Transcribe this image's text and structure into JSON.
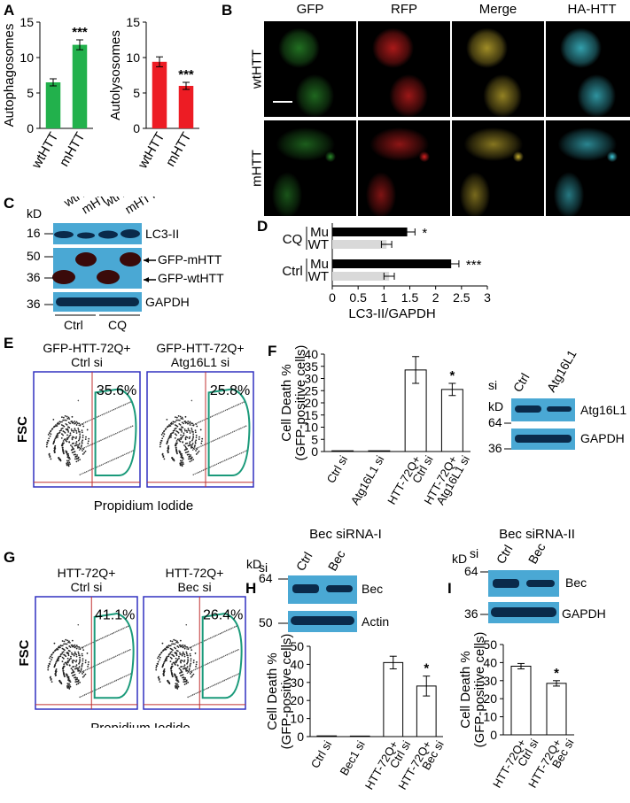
{
  "panel_labels": {
    "A": "A",
    "B": "B",
    "C": "C",
    "D": "D",
    "E": "E",
    "F": "F",
    "G": "G",
    "H": "H",
    "I": "I"
  },
  "panelA": {
    "chart_data": [
      {
        "type": "bar",
        "ylabel": "Autophagosomes",
        "categories": [
          "wtHTT",
          "mHTT"
        ],
        "values": [
          6.5,
          11.8
        ],
        "errors": [
          0.5,
          0.7
        ],
        "ylim": [
          0,
          15
        ],
        "yticks": [
          0,
          5,
          10,
          15
        ],
        "color": "#22b14c",
        "significance": [
          "",
          "***"
        ]
      },
      {
        "type": "bar",
        "ylabel": "Autolysosomes",
        "categories": [
          "wtHTT",
          "mHTT"
        ],
        "values": [
          9.4,
          6.0
        ],
        "errors": [
          0.7,
          0.5
        ],
        "ylim": [
          0,
          15
        ],
        "yticks": [
          0,
          5,
          10,
          15
        ],
        "color": "#ed1c24",
        "significance": [
          "",
          "***"
        ]
      }
    ]
  },
  "panelB": {
    "columns": [
      "GFP",
      "RFP",
      "Merge",
      "HA-HTT"
    ],
    "rows": [
      "wtHTT",
      "mHTT"
    ],
    "colors": [
      "#2a8c2a",
      "#d42020",
      "#c8b030",
      "#40c8d8"
    ]
  },
  "panelC": {
    "kD": "kD",
    "lane_labels": [
      "wtHTT",
      "mHTT",
      "wtHTT",
      "mHTT"
    ],
    "markers": [
      "16",
      "50",
      "36",
      "36"
    ],
    "bands": [
      "LC3-II",
      "GFP-mHTT",
      "GFP-wtHTT",
      "GAPDH"
    ],
    "groups": [
      "Ctrl",
      "CQ"
    ]
  },
  "panelD": {
    "chart_data": {
      "type": "bar",
      "orientation": "horizontal",
      "groups": [
        "CQ",
        "Ctrl"
      ],
      "categories": [
        "Mu",
        "WT",
        "Mu",
        "WT"
      ],
      "values": [
        1.45,
        1.05,
        2.3,
        1.1
      ],
      "errors": [
        0.15,
        0.1,
        0.15,
        0.1
      ],
      "colors": [
        "#000000",
        "#d9d9d9",
        "#000000",
        "#d9d9d9"
      ],
      "significance": [
        "*",
        "",
        "***",
        ""
      ],
      "xlabel": "LC3-II/GAPDH",
      "xlim": [
        0,
        3
      ],
      "xticks": [
        "0",
        "0.5",
        "1",
        "1.5",
        "2",
        "2.5",
        "3"
      ]
    }
  },
  "panelE": {
    "plots": [
      {
        "title1": "GFP-HTT-72Q+",
        "title2": "Ctrl si",
        "percent": "35.6%"
      },
      {
        "title1": "GFP-HTT-72Q+",
        "title2": "Atg16L1 si",
        "percent": "25.8%"
      }
    ],
    "ylabel": "FSC",
    "xlabel": "Propidium Iodide"
  },
  "panelF": {
    "chart_data": {
      "type": "bar",
      "ylabel1": "Cell Death %",
      "ylabel2": "(GFP-positive cells)",
      "categories": [
        "Ctrl si",
        "Atg16L1 si",
        "HTT-72Q+ Ctrl si",
        "HTT-72Q+ Atg16L1 si"
      ],
      "cat_line1": [
        "Ctrl si",
        "Atg16L1 si",
        "HTT-72Q+",
        "HTT-72Q+"
      ],
      "cat_line2": [
        "",
        "",
        "Ctrl si",
        "Atg16L1 si"
      ],
      "values": [
        0.3,
        0.3,
        33.5,
        25.5
      ],
      "errors": [
        0,
        0,
        5.5,
        2.5
      ],
      "significance": [
        "",
        "",
        "",
        "*"
      ],
      "ylim": [
        0,
        40
      ],
      "yticks": [
        0,
        5,
        10,
        15,
        20,
        25,
        30,
        35,
        40
      ]
    },
    "blot": {
      "si": "si",
      "lanes": [
        "Ctrl",
        "Atg16L1"
      ],
      "kD": "kD",
      "markers": [
        "64",
        "36"
      ],
      "bands": [
        "Atg16L1",
        "GAPDH"
      ]
    }
  },
  "panelG": {
    "plots": [
      {
        "title1": "HTT-72Q+",
        "title2": "Ctrl si",
        "percent": "41.1%"
      },
      {
        "title1": "HTT-72Q+",
        "title2": "Bec si",
        "percent": "26.4%"
      }
    ],
    "ylabel": "FSC",
    "xlabel": "Propidium Iodide"
  },
  "panelH": {
    "title": "Bec siRNA-I",
    "blot": {
      "si": "si",
      "lanes": [
        "Ctrl",
        "Bec"
      ],
      "kD": "kD",
      "markers": [
        "64",
        "50"
      ],
      "bands": [
        "Bec",
        "Actin"
      ]
    },
    "chart_data": {
      "type": "bar",
      "ylabel1": "Cell Death %",
      "ylabel2": "(GFP-positive cells)",
      "categories": [
        "Ctrl si",
        "Bec1 si",
        "HTT-72Q+ Ctrl si",
        "HTT-72Q+ Bec si"
      ],
      "cat_line1": [
        "Ctrl si",
        "Bec1 si",
        "HTT-72Q+",
        "HTT-72Q+"
      ],
      "cat_line2": [
        "",
        "",
        "Ctrl si",
        "Bec si"
      ],
      "values": [
        0.4,
        0.3,
        41,
        28
      ],
      "errors": [
        0,
        0,
        3.5,
        5.5
      ],
      "significance": [
        "",
        "",
        "",
        "*"
      ],
      "ylim": [
        0,
        50
      ],
      "yticks": [
        0,
        10,
        20,
        30,
        40,
        50
      ]
    }
  },
  "panelI": {
    "title": "Bec siRNA-II",
    "blot": {
      "si": "si",
      "lanes": [
        "Ctrl",
        "Bec"
      ],
      "kD": "kD",
      "markers": [
        "64",
        "36"
      ],
      "bands": [
        "Bec",
        "GAPDH"
      ]
    },
    "chart_data": {
      "type": "bar",
      "ylabel1": "Cell Death %",
      "ylabel2": "(GFP-positive cells)",
      "categories": [
        "HTT-72Q+ Ctrl si",
        "HTT-72Q+ Bec si"
      ],
      "cat_line1": [
        "HTT-72Q+",
        "HTT-72Q+"
      ],
      "cat_line2": [
        "Ctrl si",
        "Bec si"
      ],
      "values": [
        38,
        28.5
      ],
      "errors": [
        1.5,
        1.5
      ],
      "significance": [
        "",
        "*"
      ],
      "ylim": [
        0,
        50
      ],
      "yticks": [
        0,
        10,
        20,
        30,
        40,
        50
      ]
    }
  }
}
